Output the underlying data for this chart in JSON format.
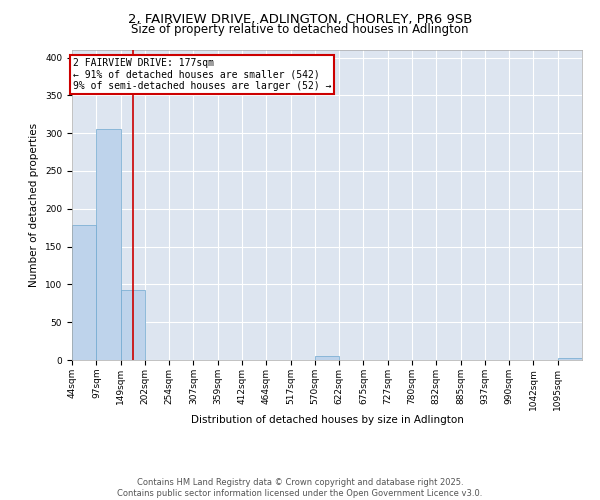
{
  "title_line1": "2, FAIRVIEW DRIVE, ADLINGTON, CHORLEY, PR6 9SB",
  "title_line2": "Size of property relative to detached houses in Adlington",
  "xlabel": "Distribution of detached houses by size in Adlington",
  "ylabel": "Number of detached properties",
  "bin_labels": [
    "44sqm",
    "97sqm",
    "149sqm",
    "202sqm",
    "254sqm",
    "307sqm",
    "359sqm",
    "412sqm",
    "464sqm",
    "517sqm",
    "570sqm",
    "622sqm",
    "675sqm",
    "727sqm",
    "780sqm",
    "832sqm",
    "885sqm",
    "937sqm",
    "990sqm",
    "1042sqm",
    "1095sqm"
  ],
  "bin_edges": [
    44,
    97,
    149,
    202,
    254,
    307,
    359,
    412,
    464,
    517,
    570,
    622,
    675,
    727,
    780,
    832,
    885,
    937,
    990,
    1042,
    1095,
    1148
  ],
  "bar_heights": [
    178,
    305,
    93,
    0,
    0,
    0,
    0,
    0,
    0,
    0,
    5,
    0,
    0,
    0,
    0,
    0,
    0,
    0,
    0,
    0,
    2
  ],
  "bar_color": "#bed3eb",
  "bar_edgecolor": "#6fa8d0",
  "property_size": 177,
  "red_line_color": "#cc0000",
  "annotation_text": "2 FAIRVIEW DRIVE: 177sqm\n← 91% of detached houses are smaller (542)\n9% of semi-detached houses are larger (52) →",
  "annotation_box_color": "#ffffff",
  "annotation_box_edgecolor": "#cc0000",
  "ylim": [
    0,
    410
  ],
  "yticks": [
    0,
    50,
    100,
    150,
    200,
    250,
    300,
    350,
    400
  ],
  "background_color": "#dde5f0",
  "footer_line1": "Contains HM Land Registry data © Crown copyright and database right 2025.",
  "footer_line2": "Contains public sector information licensed under the Open Government Licence v3.0.",
  "title_fontsize": 9.5,
  "subtitle_fontsize": 8.5,
  "axis_label_fontsize": 7.5,
  "tick_fontsize": 6.5,
  "annotation_fontsize": 7,
  "footer_fontsize": 6
}
